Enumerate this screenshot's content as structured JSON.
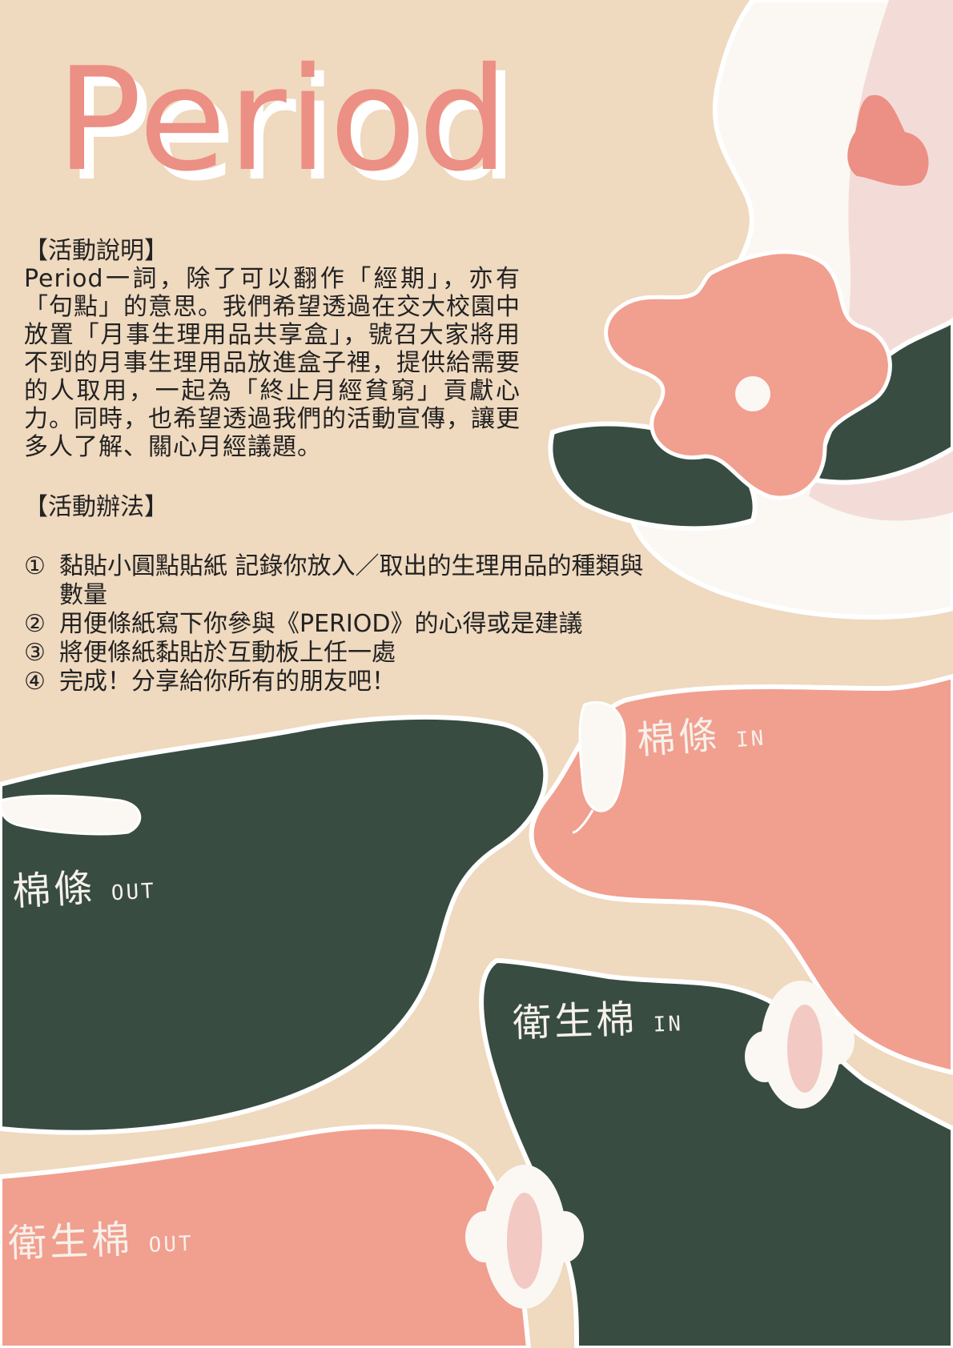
{
  "title": "Period",
  "activity_description": {
    "heading": "【活動說明】",
    "body": "Period一詞，除了可以翻作「經期」，亦有「句點」的意思。我們希望透過在交大校園中放置「月事生理用品共享盒」，號召大家將用不到的月事生理用品放進盒子裡，提供給需要的人取用，一起為「終止月經貧窮」貢獻心力。同時，也希望透過我們的活動宣傳，讓更多人了解、關心月經議題。"
  },
  "activity_method": {
    "heading": "【活動辦法】",
    "steps": [
      {
        "num": "①",
        "text": "黏貼小圓點貼紙 記錄你放入／取出的生理用品的種類與數量"
      },
      {
        "num": "②",
        "text": "用便條紙寫下你參與《PERIOD》的心得或是建議"
      },
      {
        "num": "③",
        "text": "將便條紙黏貼於互動板上任一處"
      },
      {
        "num": "④",
        "text": "完成！分享給你所有的朋友吧！"
      }
    ]
  },
  "zones": {
    "tampon_in": {
      "main": "棉條",
      "suffix": "IN"
    },
    "tampon_out": {
      "main": "棉條",
      "suffix": "OUT"
    },
    "pad_in": {
      "main": "衛生棉",
      "suffix": "IN"
    },
    "pad_out": {
      "main": "衛生棉",
      "suffix": "OUT"
    }
  },
  "colors": {
    "background": "#efd9bf",
    "salmon": "#f19f8f",
    "dark_green": "#384c42",
    "title_pink": "#ec8f84",
    "white": "#ffffff"
  }
}
